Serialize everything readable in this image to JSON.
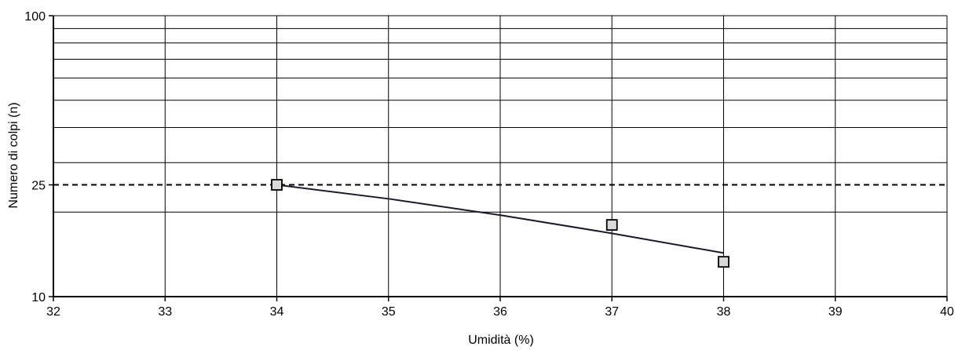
{
  "chart_data": {
    "type": "scatter",
    "title": "",
    "xlabel": "Umidità (%)",
    "ylabel": "Numero di colpi (n)",
    "xlim": [
      32,
      40
    ],
    "ylim": [
      10,
      100
    ],
    "y_scale": "log",
    "grid": true,
    "x_ticks": [
      "32",
      "33",
      "34",
      "35",
      "36",
      "37",
      "38",
      "39",
      "40"
    ],
    "y_ticks": [
      "10",
      "25",
      "100"
    ],
    "series": [
      {
        "type": "scatter",
        "marker": "square",
        "x": [
          34,
          37,
          38
        ],
        "y": [
          25,
          18,
          13.3
        ]
      },
      {
        "type": "line",
        "x": [
          34,
          35,
          36,
          37,
          38
        ],
        "y": [
          25,
          22.3,
          19.5,
          16.8,
          14.3
        ]
      }
    ],
    "reference_line": {
      "type": "horizontal",
      "y": 25,
      "style": "dashed"
    },
    "colors": {
      "axis": "#000000",
      "grid": "#000000",
      "marker_fill": "#d9d9d9",
      "line": "#1a1a2e"
    }
  }
}
